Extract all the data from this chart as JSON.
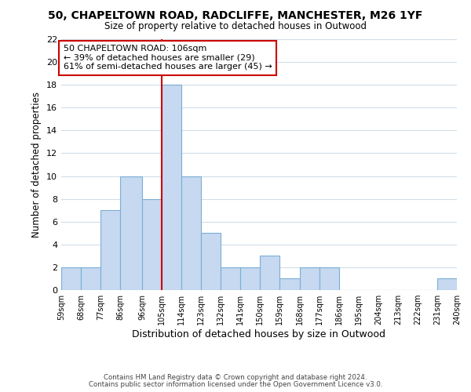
{
  "title": "50, CHAPELTOWN ROAD, RADCLIFFE, MANCHESTER, M26 1YF",
  "subtitle": "Size of property relative to detached houses in Outwood",
  "xlabel": "Distribution of detached houses by size in Outwood",
  "ylabel": "Number of detached properties",
  "bin_edges": [
    59,
    68,
    77,
    86,
    96,
    105,
    114,
    123,
    132,
    141,
    150,
    159,
    168,
    177,
    186,
    195,
    204,
    213,
    222,
    231,
    240
  ],
  "counts": [
    2,
    2,
    7,
    10,
    8,
    18,
    10,
    5,
    2,
    2,
    3,
    1,
    2,
    2,
    0,
    0,
    0,
    0,
    0,
    1
  ],
  "bar_color": "#c6d9f0",
  "bar_edge_color": "#7aaed6",
  "vline_x": 105,
  "vline_color": "#cc0000",
  "annotation_lines": [
    "50 CHAPELTOWN ROAD: 106sqm",
    "← 39% of detached houses are smaller (29)",
    "61% of semi-detached houses are larger (45) →"
  ],
  "ylim": [
    0,
    22
  ],
  "yticks": [
    0,
    2,
    4,
    6,
    8,
    10,
    12,
    14,
    16,
    18,
    20,
    22
  ],
  "tick_labels": [
    "59sqm",
    "68sqm",
    "77sqm",
    "86sqm",
    "96sqm",
    "105sqm",
    "114sqm",
    "123sqm",
    "132sqm",
    "141sqm",
    "150sqm",
    "159sqm",
    "168sqm",
    "177sqm",
    "186sqm",
    "195sqm",
    "204sqm",
    "213sqm",
    "222sqm",
    "231sqm",
    "240sqm"
  ],
  "footer_line1": "Contains HM Land Registry data © Crown copyright and database right 2024.",
  "footer_line2": "Contains public sector information licensed under the Open Government Licence v3.0.",
  "background_color": "#ffffff",
  "grid_color": "#d0dde8"
}
